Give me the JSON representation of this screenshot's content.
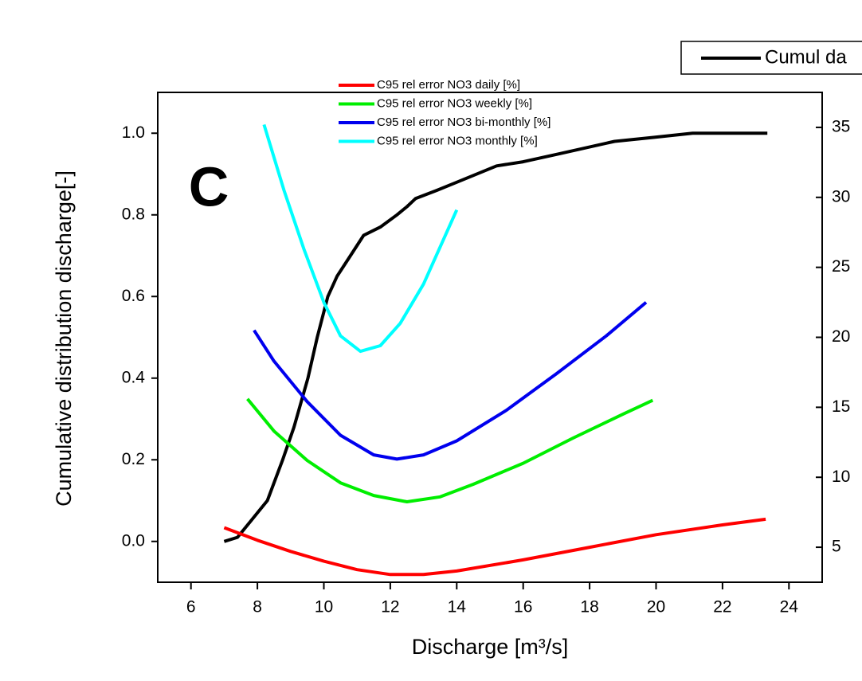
{
  "chart_data": {
    "type": "line",
    "panel_label": "C",
    "x_label": "Discharge [m³/s]",
    "y_label": "Cumulative distribution discharge[-]",
    "xlim": [
      5,
      25
    ],
    "xticks": [
      6,
      8,
      10,
      12,
      14,
      16,
      18,
      20,
      22,
      24
    ],
    "ylim": [
      -0.1,
      1.1
    ],
    "yticks": [
      {
        "value": 0,
        "label": "0.0"
      },
      0.2,
      0.4,
      0.6,
      0.8,
      {
        "value": 1,
        "label": "1.0"
      }
    ],
    "y2lim": [
      2.5,
      37.5
    ],
    "y2ticks": [
      5,
      10,
      15,
      20,
      25,
      30,
      35
    ],
    "series": [
      {
        "name": "Cumul da",
        "color": "#000000",
        "x": [
          7,
          7.4,
          7.8,
          8.3,
          8.76,
          9.1,
          9.52,
          9.8,
          10.12,
          10.4,
          10.8,
          11.2,
          11.7,
          12.2,
          12.5,
          12.76,
          13.4,
          14,
          15.2,
          16,
          17.1,
          18.75,
          19.95,
          21.1,
          23.35
        ],
        "values": [
          0.0,
          0.01,
          0.05,
          0.1,
          0.2,
          0.28,
          0.4,
          0.5,
          0.6,
          0.65,
          0.7,
          0.75,
          0.77,
          0.8,
          0.82,
          0.84,
          0.86,
          0.88,
          0.92,
          0.93,
          0.95,
          0.98,
          0.99,
          1.0,
          1.0
        ]
      },
      {
        "name": "C95 rel error NO3 daily [%]",
        "color": "#ff0000",
        "axis": "y2",
        "x": [
          7,
          8,
          9,
          10,
          11,
          12,
          13,
          14,
          16,
          18,
          20,
          22,
          23.3
        ],
        "values": [
          6.4,
          5.5,
          4.7,
          4.0,
          3.4,
          3.05,
          3.05,
          3.3,
          4.1,
          5.0,
          5.9,
          6.6,
          7.0
        ]
      },
      {
        "name": "C95 rel error NO3 weekly [%]",
        "color": "#00ee00",
        "axis": "y2",
        "x": [
          7.7,
          8.5,
          9.5,
          10.5,
          11.5,
          12.5,
          13.5,
          14.5,
          16,
          17.5,
          19,
          19.9
        ],
        "values": [
          15.6,
          13.3,
          11.2,
          9.6,
          8.7,
          8.25,
          8.6,
          9.5,
          11.0,
          12.8,
          14.5,
          15.5
        ]
      },
      {
        "name": "C95 rel error NO3 bi-monthly [%]",
        "color": "#0000ee",
        "axis": "y2",
        "x": [
          7.9,
          8.5,
          9.5,
          10.5,
          11.5,
          12.2,
          13,
          14,
          15.5,
          17,
          18.5,
          19.7
        ],
        "values": [
          20.5,
          18.3,
          15.4,
          13.0,
          11.6,
          11.3,
          11.6,
          12.6,
          14.8,
          17.4,
          20.1,
          22.5
        ]
      },
      {
        "name": "C95 rel error NO3 monthly [%]",
        "color": "#00ffff",
        "axis": "y2",
        "x": [
          8.2,
          8.8,
          9.4,
          10,
          10.5,
          11.1,
          11.7,
          12.3,
          13,
          14
        ],
        "values": [
          35.2,
          30.5,
          26.3,
          22.5,
          20.1,
          19.0,
          19.4,
          21.0,
          23.8,
          29.1
        ]
      }
    ]
  }
}
